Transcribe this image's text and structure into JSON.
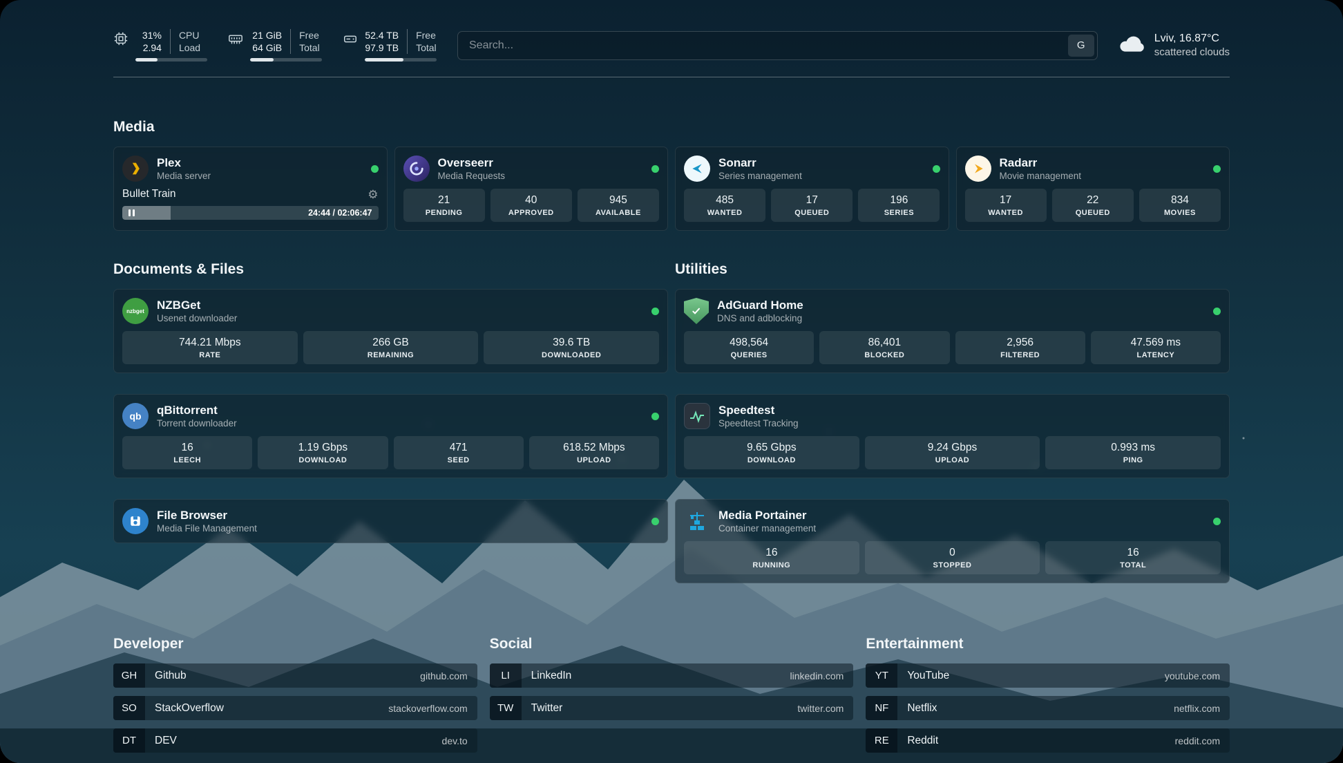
{
  "colors": {
    "status_online": "#38d06d",
    "plex_gold": "#ebaf00",
    "adguard_green": "#5aa96c",
    "portainer_blue": "#1fa8e0"
  },
  "icons": {
    "gear": "⚙"
  },
  "topbar": {
    "cpu": {
      "v1": "31%",
      "v2": "2.94",
      "l1": "CPU",
      "l2": "Load",
      "progress": 31
    },
    "memory": {
      "v1": "21 GiB",
      "v2": "64 GiB",
      "l1": "Free",
      "l2": "Total",
      "progress": 33
    },
    "disk": {
      "v1": "52.4 TB",
      "v2": "97.9 TB",
      "l1": "Free",
      "l2": "Total",
      "progress": 54
    },
    "search": {
      "placeholder": "Search...",
      "provider": "G"
    },
    "weather": {
      "location": "Lviv, 16.87°C",
      "condition": "scattered clouds"
    }
  },
  "media": {
    "title": "Media",
    "plex": {
      "title": "Plex",
      "subtitle": "Media server",
      "now_playing": "Bullet Train",
      "time": "24:44 / 02:06:47",
      "progress": 19
    },
    "overseerr": {
      "title": "Overseerr",
      "subtitle": "Media Requests",
      "stats": [
        {
          "value": "21",
          "label": "PENDING"
        },
        {
          "value": "40",
          "label": "APPROVED"
        },
        {
          "value": "945",
          "label": "AVAILABLE"
        }
      ]
    },
    "sonarr": {
      "title": "Sonarr",
      "subtitle": "Series management",
      "stats": [
        {
          "value": "485",
          "label": "WANTED"
        },
        {
          "value": "17",
          "label": "QUEUED"
        },
        {
          "value": "196",
          "label": "SERIES"
        }
      ]
    },
    "radarr": {
      "title": "Radarr",
      "subtitle": "Movie management",
      "stats": [
        {
          "value": "17",
          "label": "WANTED"
        },
        {
          "value": "22",
          "label": "QUEUED"
        },
        {
          "value": "834",
          "label": "MOVIES"
        }
      ]
    }
  },
  "documents": {
    "title": "Documents & Files",
    "nzbget": {
      "title": "NZBGet",
      "subtitle": "Usenet downloader",
      "icon_text": "nzbget",
      "stats": [
        {
          "value": "744.21 Mbps",
          "label": "RATE"
        },
        {
          "value": "266 GB",
          "label": "REMAINING"
        },
        {
          "value": "39.6 TB",
          "label": "DOWNLOADED"
        }
      ]
    },
    "qbittorrent": {
      "title": "qBittorrent",
      "subtitle": "Torrent downloader",
      "icon_text": "qb",
      "stats": [
        {
          "value": "16",
          "label": "LEECH"
        },
        {
          "value": "1.19 Gbps",
          "label": "DOWNLOAD"
        },
        {
          "value": "471",
          "label": "SEED"
        },
        {
          "value": "618.52 Mbps",
          "label": "UPLOAD"
        }
      ]
    },
    "filebrowser": {
      "title": "File Browser",
      "subtitle": "Media File Management"
    }
  },
  "utilities": {
    "title": "Utilities",
    "adguard": {
      "title": "AdGuard Home",
      "subtitle": "DNS and adblocking",
      "stats": [
        {
          "value": "498,564",
          "label": "QUERIES"
        },
        {
          "value": "86,401",
          "label": "BLOCKED"
        },
        {
          "value": "2,956",
          "label": "FILTERED"
        },
        {
          "value": "47.569 ms",
          "label": "LATENCY"
        }
      ]
    },
    "speedtest": {
      "title": "Speedtest",
      "subtitle": "Speedtest Tracking",
      "stats": [
        {
          "value": "9.65 Gbps",
          "label": "DOWNLOAD"
        },
        {
          "value": "9.24 Gbps",
          "label": "UPLOAD"
        },
        {
          "value": "0.993 ms",
          "label": "PING"
        }
      ]
    },
    "portainer": {
      "title": "Media Portainer",
      "subtitle": "Container management",
      "stats": [
        {
          "value": "16",
          "label": "RUNNING"
        },
        {
          "value": "0",
          "label": "STOPPED"
        },
        {
          "value": "16",
          "label": "TOTAL"
        }
      ]
    }
  },
  "bookmarks": {
    "developer": {
      "title": "Developer",
      "items": [
        {
          "abbr": "GH",
          "name": "Github",
          "url": "github.com"
        },
        {
          "abbr": "SO",
          "name": "StackOverflow",
          "url": "stackoverflow.com"
        },
        {
          "abbr": "DT",
          "name": "DEV",
          "url": "dev.to"
        }
      ]
    },
    "social": {
      "title": "Social",
      "items": [
        {
          "abbr": "LI",
          "name": "LinkedIn",
          "url": "linkedin.com"
        },
        {
          "abbr": "TW",
          "name": "Twitter",
          "url": "twitter.com"
        }
      ]
    },
    "entertainment": {
      "title": "Entertainment",
      "items": [
        {
          "abbr": "YT",
          "name": "YouTube",
          "url": "youtube.com"
        },
        {
          "abbr": "NF",
          "name": "Netflix",
          "url": "netflix.com"
        },
        {
          "abbr": "RE",
          "name": "Reddit",
          "url": "reddit.com"
        }
      ]
    }
  }
}
